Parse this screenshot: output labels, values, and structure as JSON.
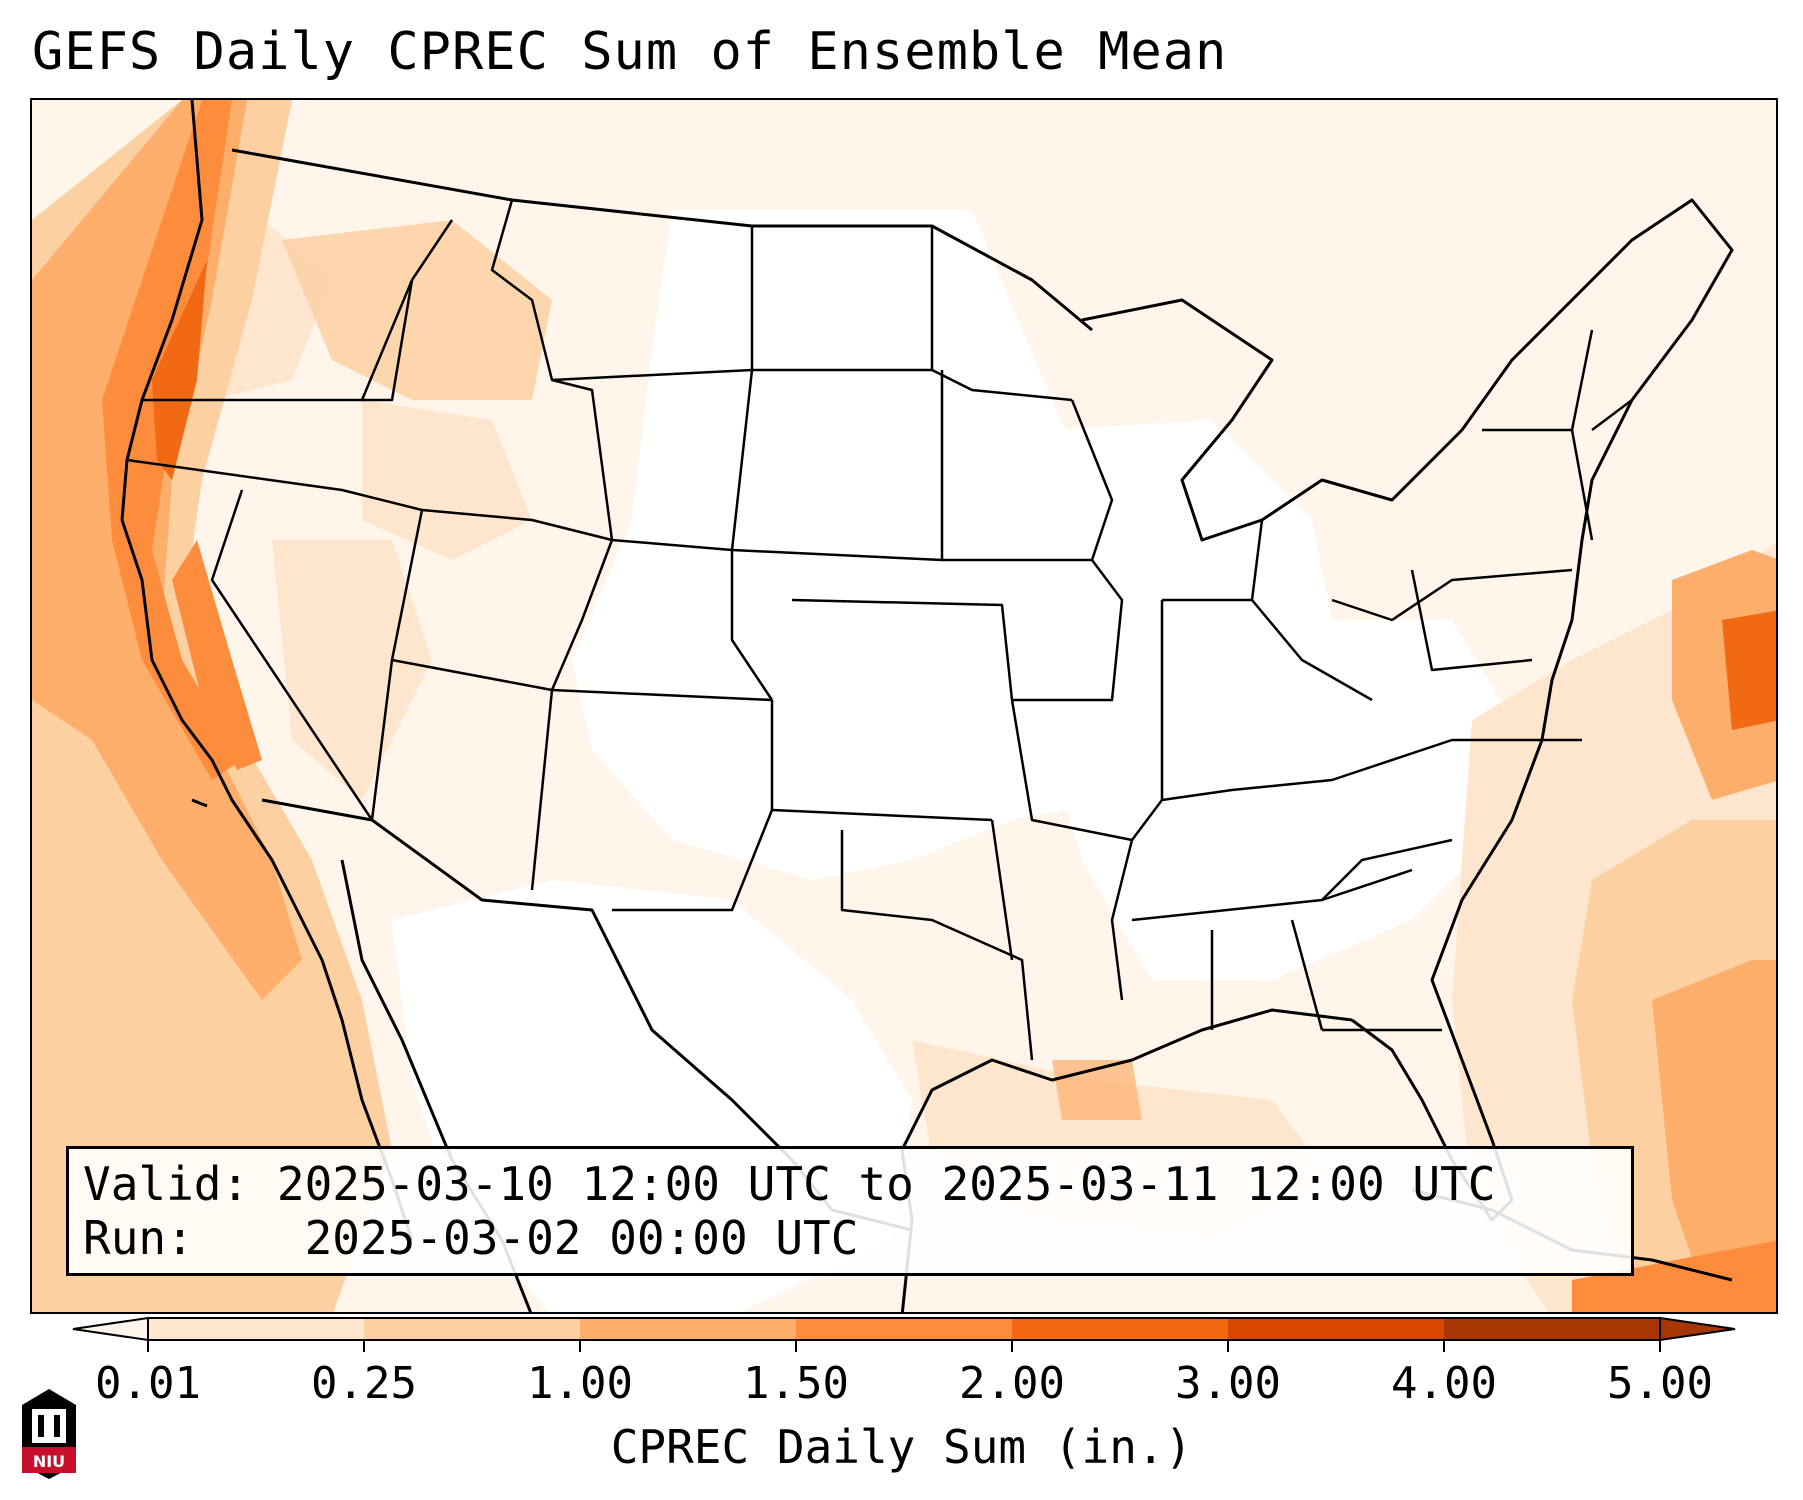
{
  "title": "GEFS Daily CPREC Sum of Ensemble Mean",
  "info": {
    "valid_label": "Valid:",
    "valid_value": "2025-03-10 12:00 UTC to 2025-03-11 12:00 UTC",
    "run_label": "Run:",
    "run_value": "2025-03-02 00:00 UTC"
  },
  "colorbar": {
    "label": "CPREC Daily Sum (in.)",
    "ticks": [
      "0.01",
      "0.25",
      "1.00",
      "1.50",
      "2.00",
      "3.00",
      "4.00",
      "5.00"
    ],
    "colors": [
      "#fff5eb",
      "#fee6ce",
      "#fdd0a2",
      "#fdae6b",
      "#fd8d3c",
      "#f16913",
      "#d94801",
      "#a63603"
    ],
    "extend": "both"
  },
  "logo": {
    "text": "NIU"
  },
  "colors": {
    "background": "#ffffff",
    "coast_state_lines": "#000000"
  },
  "map": {
    "projection": "lambert-conformal",
    "region": "contiguous United States",
    "borders": [
      "coastlines",
      "country borders",
      "state borders"
    ]
  }
}
